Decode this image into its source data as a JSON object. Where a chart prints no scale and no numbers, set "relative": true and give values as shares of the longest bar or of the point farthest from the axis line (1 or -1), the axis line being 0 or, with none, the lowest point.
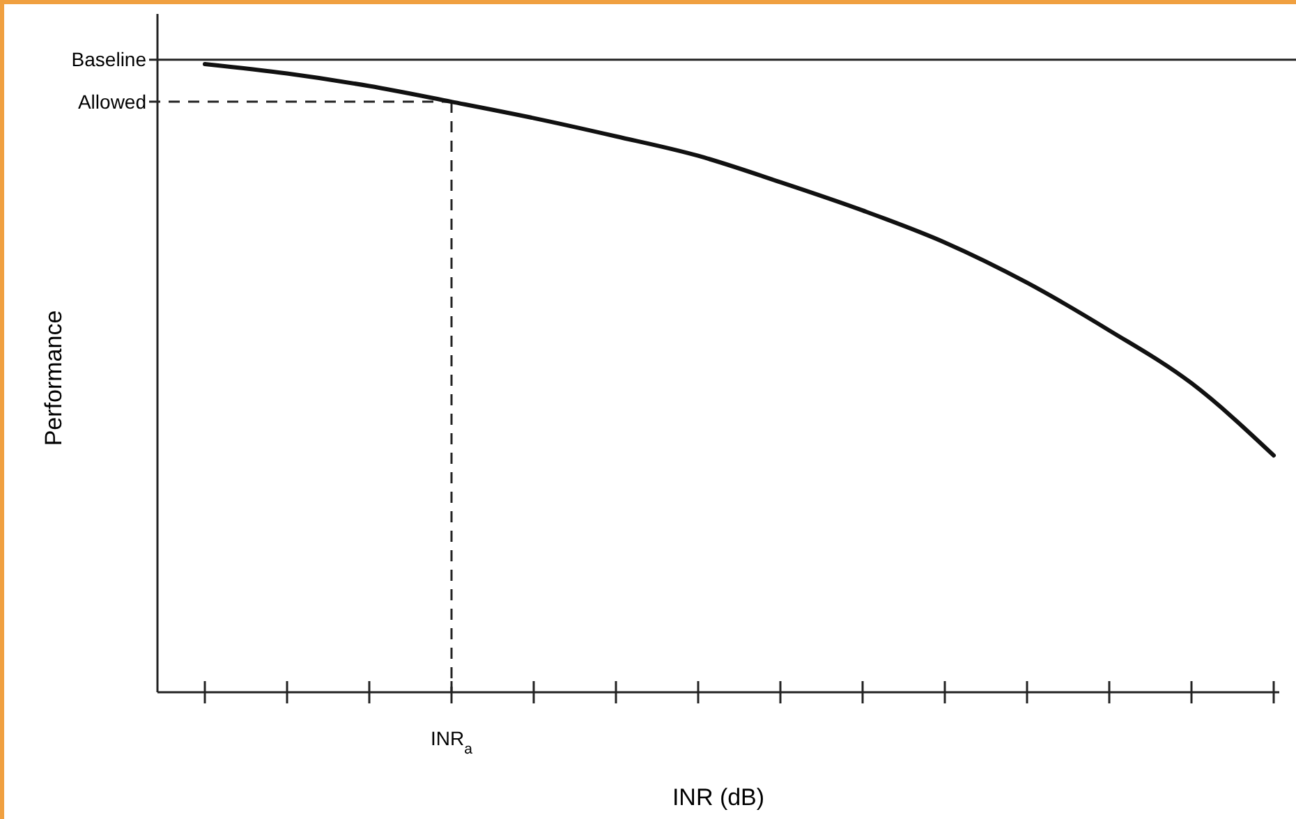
{
  "chart_data": {
    "type": "line",
    "relative": true,
    "xlabel": "INR (dB)",
    "ylabel": "Performance",
    "categories": [
      null,
      null,
      null,
      null,
      null,
      null,
      null,
      null,
      null,
      null,
      null,
      null,
      null,
      null
    ],
    "series": [
      {
        "color": "#111111",
        "values": [
          1,
          0.985,
          0.965,
          0.94,
          0.914,
          0.885,
          0.854,
          0.812,
          0.767,
          0.716,
          0.652,
          0.576,
          0.492,
          0.377
        ]
      }
    ],
    "ref_lines": [
      {
        "axis": "y",
        "value": 1.007,
        "label": "Baseline",
        "line_style": "solid",
        "color": "#222222"
      },
      {
        "axis": "y",
        "value": 0.94,
        "label": "Allowed",
        "line_style": "dashed",
        "color": "#222222"
      }
    ],
    "annotations": [
      "INR$_{a}$"
    ],
    "marker": "none",
    "line_style": "solid"
  }
}
